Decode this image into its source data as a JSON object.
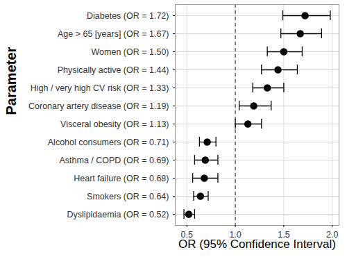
{
  "chart_data": {
    "type": "forest",
    "orientation": "horizontal",
    "categories": [
      "Diabetes (OR = 1.72)",
      "Age > 65 [years] (OR = 1.67)",
      "Women (OR = 1.50)",
      "Physically active (OR = 1.44)",
      "High / very high CV risk (OR = 1.33)",
      "Coronary artery disease (OR = 1.19)",
      "Visceral obesity (OR = 1.13)",
      "Alcohol consumers (OR = 0.71)",
      "Asthma / COPD (OR = 0.69)",
      "Heart failure (OR = 0.68)",
      "Smokers (OR = 0.64)",
      "Dyslipidaemia (OR = 0.52)"
    ],
    "values": [
      1.72,
      1.67,
      1.5,
      1.44,
      1.33,
      1.19,
      1.13,
      0.71,
      0.69,
      0.68,
      0.64,
      0.52
    ],
    "ci_lower": [
      1.49,
      1.47,
      1.33,
      1.27,
      1.18,
      1.04,
      1.0,
      0.63,
      0.58,
      0.56,
      0.57,
      0.47
    ],
    "ci_upper": [
      1.98,
      1.89,
      1.69,
      1.64,
      1.5,
      1.37,
      1.27,
      0.8,
      0.82,
      0.82,
      0.72,
      0.58
    ],
    "reference_line": 1,
    "xlabel": "OR (95% Confidence Interval)",
    "ylabel": "Parameter",
    "xlim": [
      0.38,
      2.07
    ],
    "xticks": [
      0.5,
      {
        "value": 1,
        "label": "1.0"
      },
      1.5,
      {
        "value": 2,
        "label": "2.0"
      }
    ],
    "grid": true,
    "color": "#000000"
  }
}
